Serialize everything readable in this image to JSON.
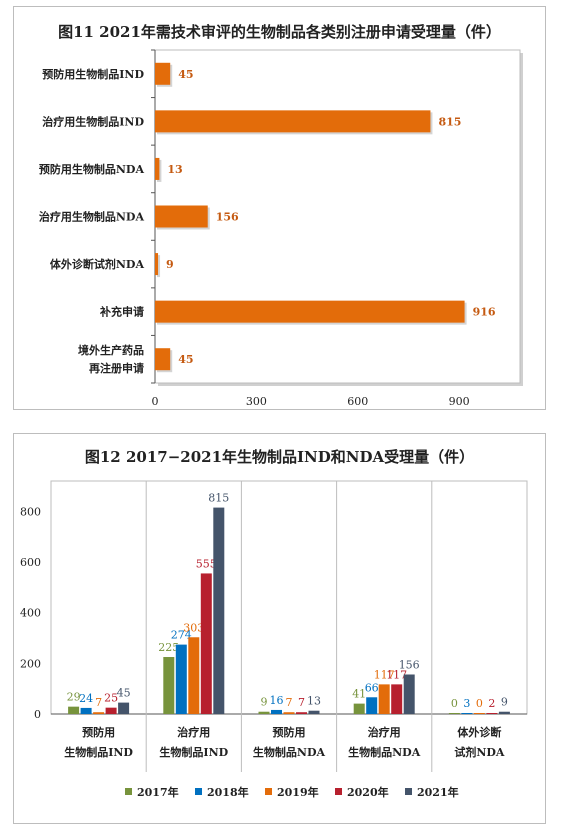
{
  "chart_data": [
    {
      "type": "bar",
      "orientation": "horizontal",
      "title": "图11 2021年需技术审评的生物制品各类别注册申请受理量（件）",
      "categories": [
        "预防用生物制品IND",
        "治疗用生物制品IND",
        "预防用生物制品NDA",
        "治疗用生物制品NDA",
        "体外诊断试剂NDA",
        "补充申请",
        "境外生产药品\n再注册申请"
      ],
      "values": [
        45,
        815,
        13,
        156,
        9,
        916,
        45
      ],
      "xlim": [
        0,
        1080
      ],
      "xticks": [
        0,
        300,
        600,
        900
      ],
      "grid": false,
      "bar_color": "#e36c0a",
      "label_color": "#c55a11"
    },
    {
      "type": "bar",
      "title": "图12  2017−2021年生物制品IND和NDA受理量（件）",
      "categories": [
        "预防用\n生物制品IND",
        "治疗用\n生物制品IND",
        "预防用\n生物制品NDA",
        "治疗用\n生物制品NDA",
        "体外诊断\n试剂NDA"
      ],
      "series": [
        {
          "name": "2017年",
          "color": "#77933c",
          "values": [
            29,
            225,
            9,
            41,
            0
          ]
        },
        {
          "name": "2018年",
          "color": "#0070c0",
          "values": [
            24,
            274,
            16,
            66,
            3
          ]
        },
        {
          "name": "2019年",
          "color": "#e36c0a",
          "values": [
            7,
            303,
            7,
            117,
            0
          ]
        },
        {
          "name": "2020年",
          "color": "#b7202e",
          "values": [
            25,
            555,
            7,
            117,
            2
          ]
        },
        {
          "name": "2021年",
          "color": "#44546a",
          "values": [
            45,
            815,
            13,
            156,
            9
          ]
        }
      ],
      "ylim": [
        0,
        920
      ],
      "yticks": [
        0,
        200,
        400,
        600,
        800
      ],
      "grid": false,
      "legend": "bottom"
    }
  ]
}
